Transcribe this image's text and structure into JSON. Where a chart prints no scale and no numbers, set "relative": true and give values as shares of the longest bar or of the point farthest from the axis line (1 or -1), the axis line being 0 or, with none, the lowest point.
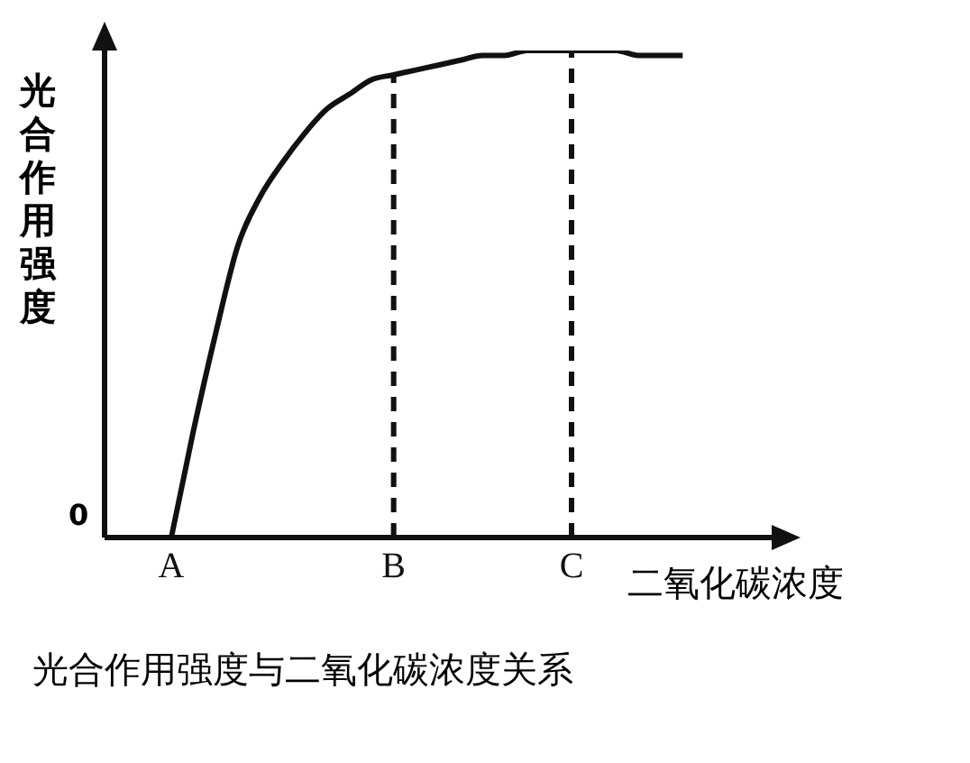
{
  "chart_data": {
    "type": "line",
    "relative": true,
    "title": "光合作用强度与二氧化碳浓度关系",
    "xlabel": "二氧化碳浓度",
    "ylabel": "光合作用强度",
    "annotations": [
      "0"
    ],
    "categories": [
      null,
      null,
      null,
      "A",
      null,
      null,
      null,
      null,
      null,
      null,
      null,
      null,
      null,
      "B",
      null,
      null,
      null,
      null,
      null,
      null,
      null,
      "C",
      null,
      null,
      null,
      null,
      null,
      null,
      null,
      null,
      null
    ],
    "values": [
      null,
      null,
      null,
      0,
      0.22,
      0.42,
      0.6,
      0.7,
      0.77,
      0.83,
      0.88,
      0.91,
      0.94,
      0.95,
      0.96,
      0.97,
      0.98,
      0.99,
      0.99,
      1,
      1,
      1,
      1,
      1,
      0.99,
      0.99,
      0.99,
      null,
      null,
      null,
      null
    ],
    "color": "#111111",
    "ref_lines": [
      {
        "axis": "x",
        "value": "B",
        "line_style": "dashed",
        "color": "#111111"
      },
      {
        "axis": "x",
        "value": "C",
        "line_style": "dashed",
        "color": "#111111"
      }
    ],
    "grid": false,
    "legend": false,
    "marker": "none",
    "line_style": "solid"
  }
}
